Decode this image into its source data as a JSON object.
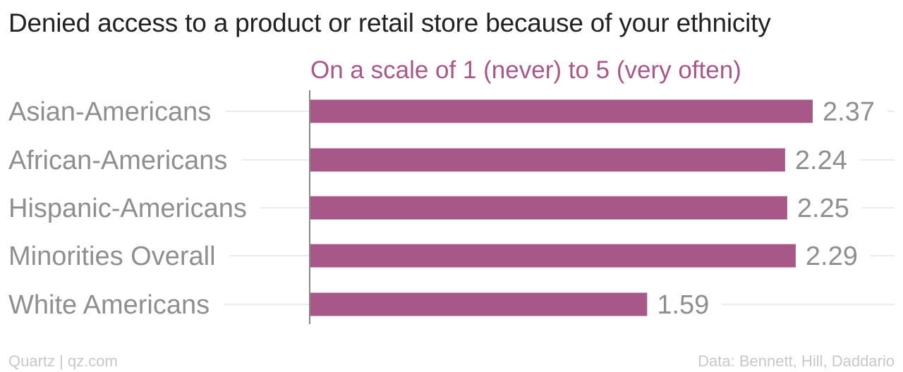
{
  "title": "Denied access to a product or retail store because of your ethnicity",
  "subtitle": "On a scale of 1 (never) to 5 (very often)",
  "footer": {
    "left": "Quartz | qz.com",
    "right": "Data: Bennett, Hill, Daddario"
  },
  "colors": {
    "bar": "#a85888",
    "label": "#8f8f8f",
    "gridline": "#ebebeb",
    "axis": "#888888"
  },
  "chart_data": {
    "type": "bar",
    "orientation": "horizontal",
    "categories": [
      "Asian-Americans",
      "African-Americans",
      "Hispanic-Americans",
      "Minorities Overall",
      "White Americans"
    ],
    "values": [
      2.37,
      2.24,
      2.25,
      2.29,
      1.59
    ],
    "value_labels": [
      "2.37",
      "2.24",
      "2.25",
      "2.29",
      "1.59"
    ],
    "xlim": [
      0,
      2.6
    ],
    "grid": true,
    "legend": "none"
  }
}
